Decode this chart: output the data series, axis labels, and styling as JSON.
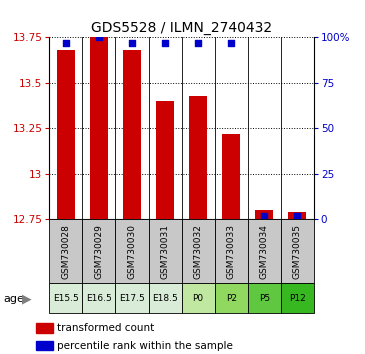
{
  "title": "GDS5528 / ILMN_2740432",
  "samples": [
    "GSM730028",
    "GSM730029",
    "GSM730030",
    "GSM730031",
    "GSM730032",
    "GSM730033",
    "GSM730034",
    "GSM730035"
  ],
  "ages": [
    "E15.5",
    "E16.5",
    "E17.5",
    "E18.5",
    "P0",
    "P2",
    "P5",
    "P12"
  ],
  "age_colors": [
    "#d8ecd8",
    "#d8ecd8",
    "#d8ecd8",
    "#d8ecd8",
    "#c0e8a0",
    "#90d860",
    "#60c840",
    "#38b820"
  ],
  "transformed_counts": [
    13.68,
    13.75,
    13.68,
    13.4,
    13.43,
    13.22,
    12.8,
    12.79
  ],
  "percentile_ranks": [
    97,
    100,
    97,
    97,
    97,
    97,
    2,
    2
  ],
  "ylim_left": [
    12.75,
    13.75
  ],
  "ylim_right": [
    0,
    100
  ],
  "yticks_left": [
    12.75,
    13.0,
    13.25,
    13.5,
    13.75
  ],
  "ytick_labels_left": [
    "12.75",
    "13",
    "13.25",
    "13.5",
    "13.75"
  ],
  "yticks_right": [
    0,
    25,
    50,
    75,
    100
  ],
  "ytick_labels_right": [
    "0",
    "25",
    "50",
    "75",
    "100%"
  ],
  "bar_color": "#cc0000",
  "dot_color": "#0000cc",
  "bar_width": 0.55,
  "sample_bg_color": "#c8c8c8"
}
